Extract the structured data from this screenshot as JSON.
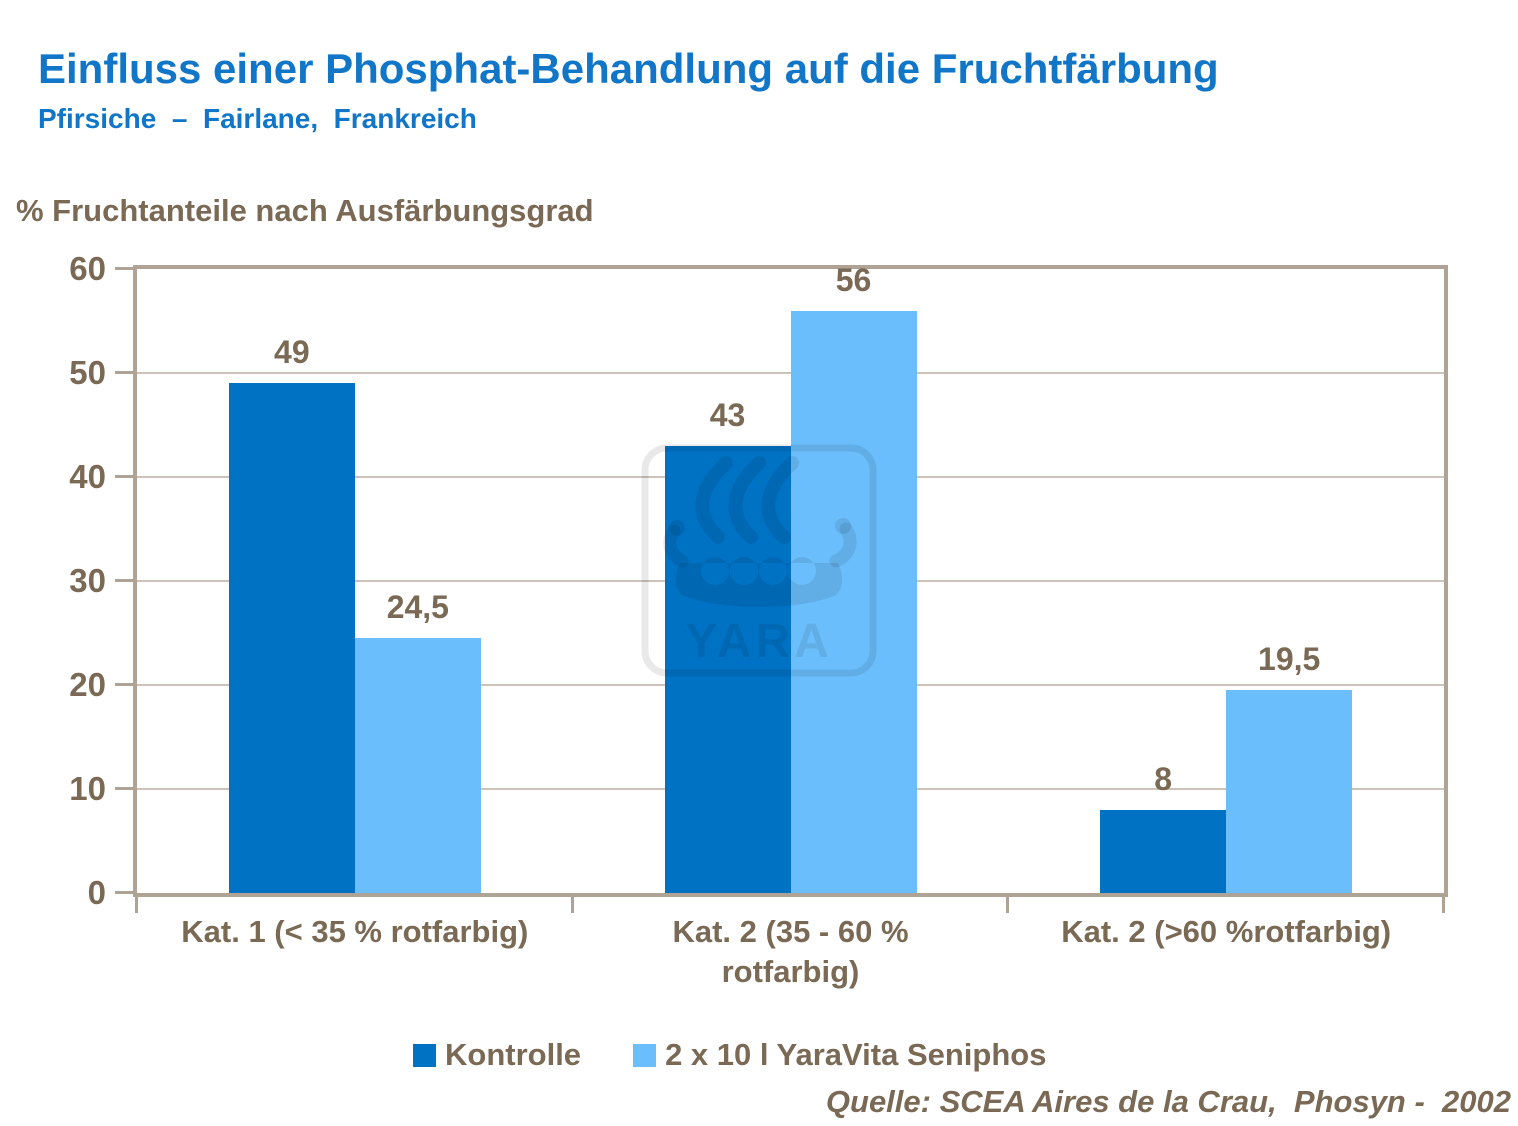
{
  "slide": {
    "title": "Einfluss einer Phosphat-Behandlung auf die Fruchtfärbung",
    "subtitle": "Pfirsiche  –  Fairlane,  Frankreich",
    "source": "Quelle: SCEA Aires de la Crau,  Phosyn -  2002",
    "watermark_text": "YARA"
  },
  "chart_data": {
    "type": "bar",
    "title": "% Fruchtanteile nach Ausfärbungsgrad",
    "categories": [
      "Kat. 1 (< 35 % rotfarbig)",
      "Kat. 2 (35 - 60 %\nrotfarbig)",
      "Kat. 2 (>60 %rotfarbig)"
    ],
    "series": [
      {
        "name": "Kontrolle",
        "color": "#0072C4",
        "values": [
          49,
          43,
          8
        ],
        "value_labels": [
          "49",
          "43",
          "8"
        ]
      },
      {
        "name": "2 x 10 l YaraVita Seniphos",
        "color": "#6BBEFC",
        "values": [
          24.5,
          56,
          19.5
        ],
        "value_labels": [
          "24,5",
          "56",
          "19,5"
        ]
      }
    ],
    "xlabel": "",
    "ylabel": "% Fruchtanteile nach Ausfärbungsgrad",
    "ylim": [
      0,
      60
    ],
    "yticks": [
      0,
      10,
      20,
      30,
      40,
      50,
      60
    ],
    "grid": true,
    "legend_position": "bottom"
  },
  "colors": {
    "title_blue": "#1176C8",
    "text_brown": "#7A6A55",
    "axis_frame": "#AFA396",
    "gridline": "#CCC3BA",
    "series_kontrolle": "#0072C4",
    "series_seniphos": "#6BBEFC",
    "background": "#FFFFFF"
  }
}
